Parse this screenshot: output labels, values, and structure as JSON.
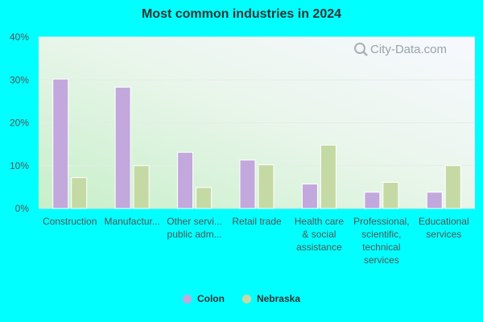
{
  "chart_data": {
    "type": "bar",
    "title": "Most common industries in 2024",
    "categories": [
      [
        "Construction"
      ],
      [
        "Manufactur..."
      ],
      [
        "Other servi...",
        "public adm..."
      ],
      [
        "Retail trade"
      ],
      [
        "Health care",
        "& social",
        "assistance"
      ],
      [
        "Professional,",
        "scientific,",
        "technical",
        "services"
      ],
      [
        "Educational",
        "services"
      ]
    ],
    "series": [
      {
        "name": "Colon",
        "color": "#c2a8dc",
        "values": [
          30.2,
          28.3,
          13.1,
          11.3,
          5.7,
          3.8,
          3.8
        ]
      },
      {
        "name": "Nebraska",
        "color": "#c5d9a4",
        "values": [
          7.2,
          10.0,
          4.9,
          10.2,
          14.8,
          6.1,
          10.0
        ]
      }
    ],
    "yticks": [
      "0%",
      "10%",
      "20%",
      "30%",
      "40%"
    ],
    "ylim": [
      0,
      40
    ],
    "grid": true,
    "legend_position": "bottom"
  },
  "watermark": {
    "text": "City-Data.com",
    "icon": "magnifier-icon"
  }
}
